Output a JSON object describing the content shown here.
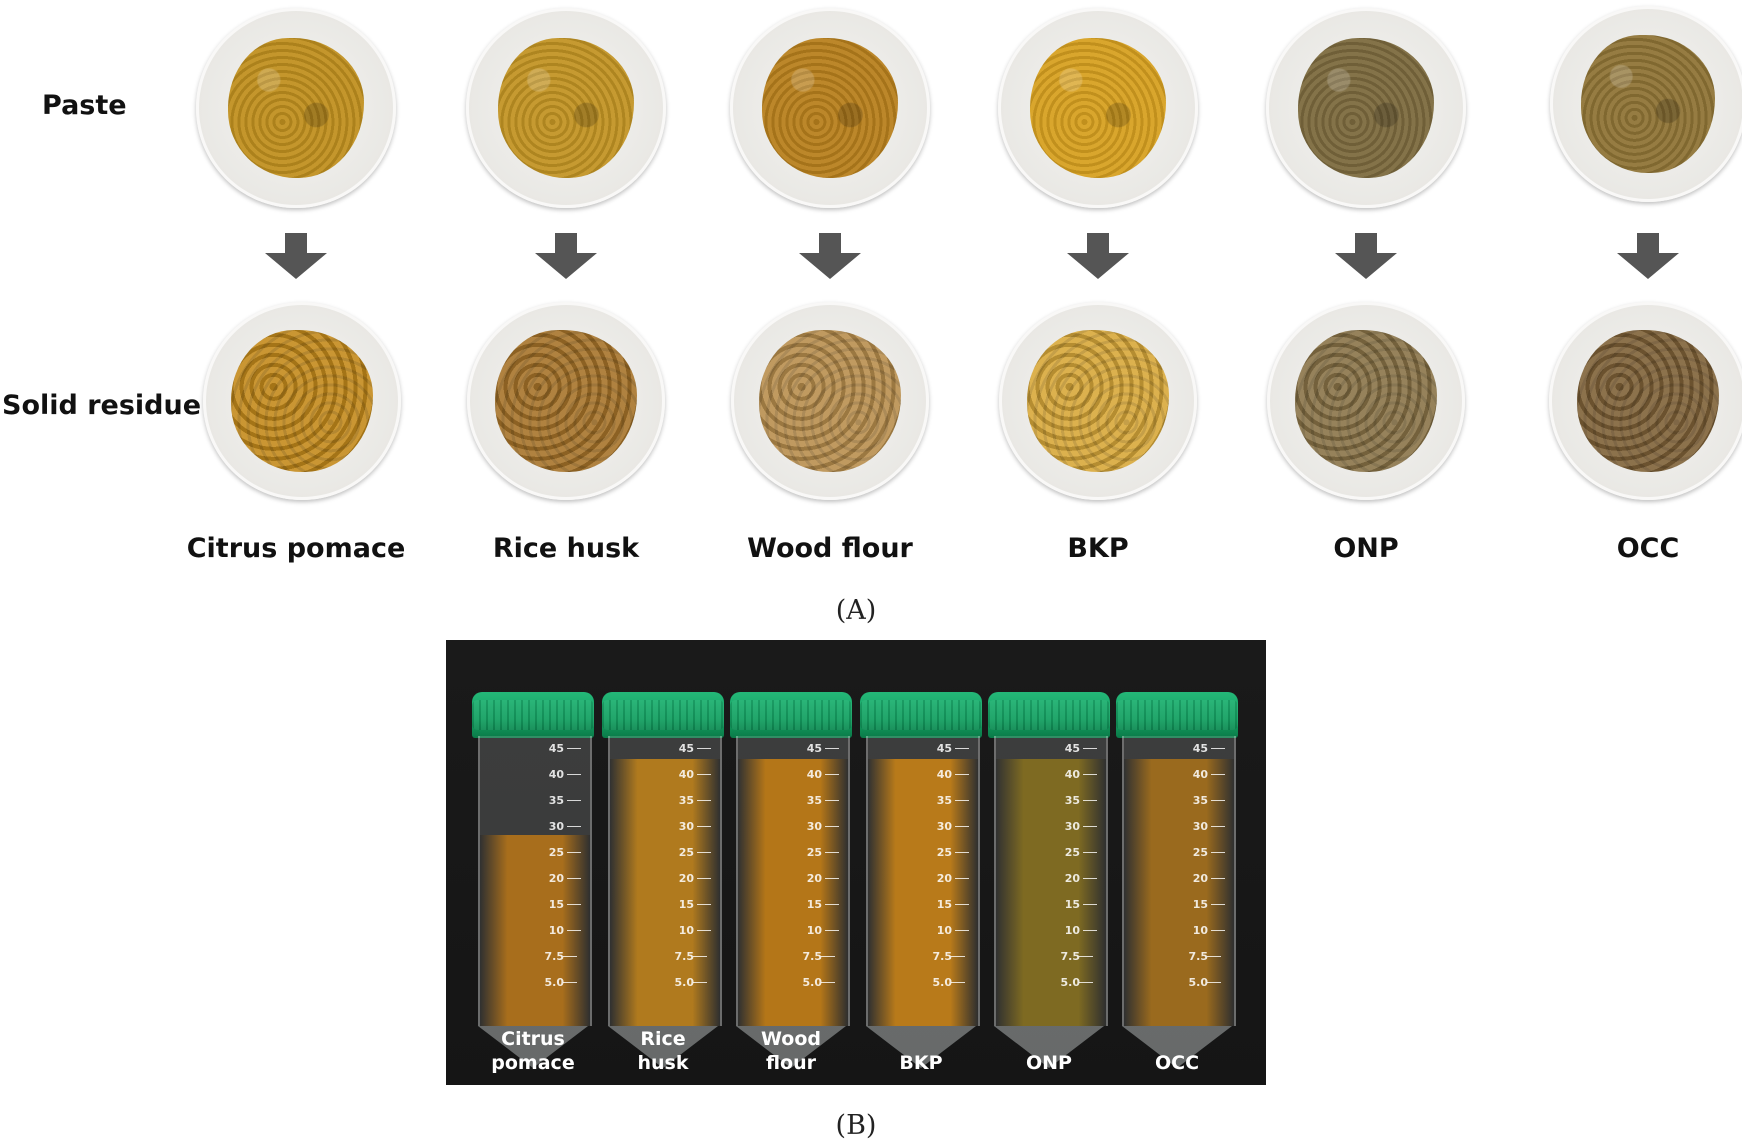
{
  "panel_a": {
    "row_labels": {
      "paste": "Paste",
      "solid_residue": "Solid residue"
    },
    "samples": [
      {
        "label": "Citrus pomace",
        "paste_color": "#c0901f",
        "residue_color": "#c48a1c"
      },
      {
        "label": "Rice husk",
        "paste_color": "#c29424",
        "residue_color": "#a7742a"
      },
      {
        "label": "Wood flour",
        "paste_color": "#b8801d",
        "residue_color": "#b98f4e"
      },
      {
        "label": "BKP",
        "paste_color": "#d7a020",
        "residue_color": "#d8a83a"
      },
      {
        "label": "ONP",
        "paste_color": "#7c6a3e",
        "residue_color": "#8a7448"
      },
      {
        "label": "OCC",
        "paste_color": "#8f7436",
        "residue_color": "#7f6238"
      }
    ],
    "caption": "(A)"
  },
  "panel_b": {
    "tubes": [
      {
        "label_line1": "Citrus",
        "label_line2": "pomace",
        "fill_color": "#a86e1c",
        "fill_level": 0.66
      },
      {
        "label_line1": "Rice",
        "label_line2": "husk",
        "fill_color": "#b07a1e",
        "fill_level": 0.92
      },
      {
        "label_line1": "Wood",
        "label_line2": "flour",
        "fill_color": "#b47618",
        "fill_level": 0.92
      },
      {
        "label_line1": "",
        "label_line2": "BKP",
        "fill_color": "#b87a1a",
        "fill_level": 0.92
      },
      {
        "label_line1": "",
        "label_line2": "ONP",
        "fill_color": "#7e6a22",
        "fill_level": 0.92
      },
      {
        "label_line1": "",
        "label_line2": "OCC",
        "fill_color": "#9a6a1e",
        "fill_level": 0.92
      }
    ],
    "graduations": [
      "45",
      "40",
      "35",
      "30",
      "25",
      "20",
      "15",
      "10",
      "7.5",
      "5.0"
    ],
    "cap_color": "#15a062",
    "caption": "(B)"
  }
}
